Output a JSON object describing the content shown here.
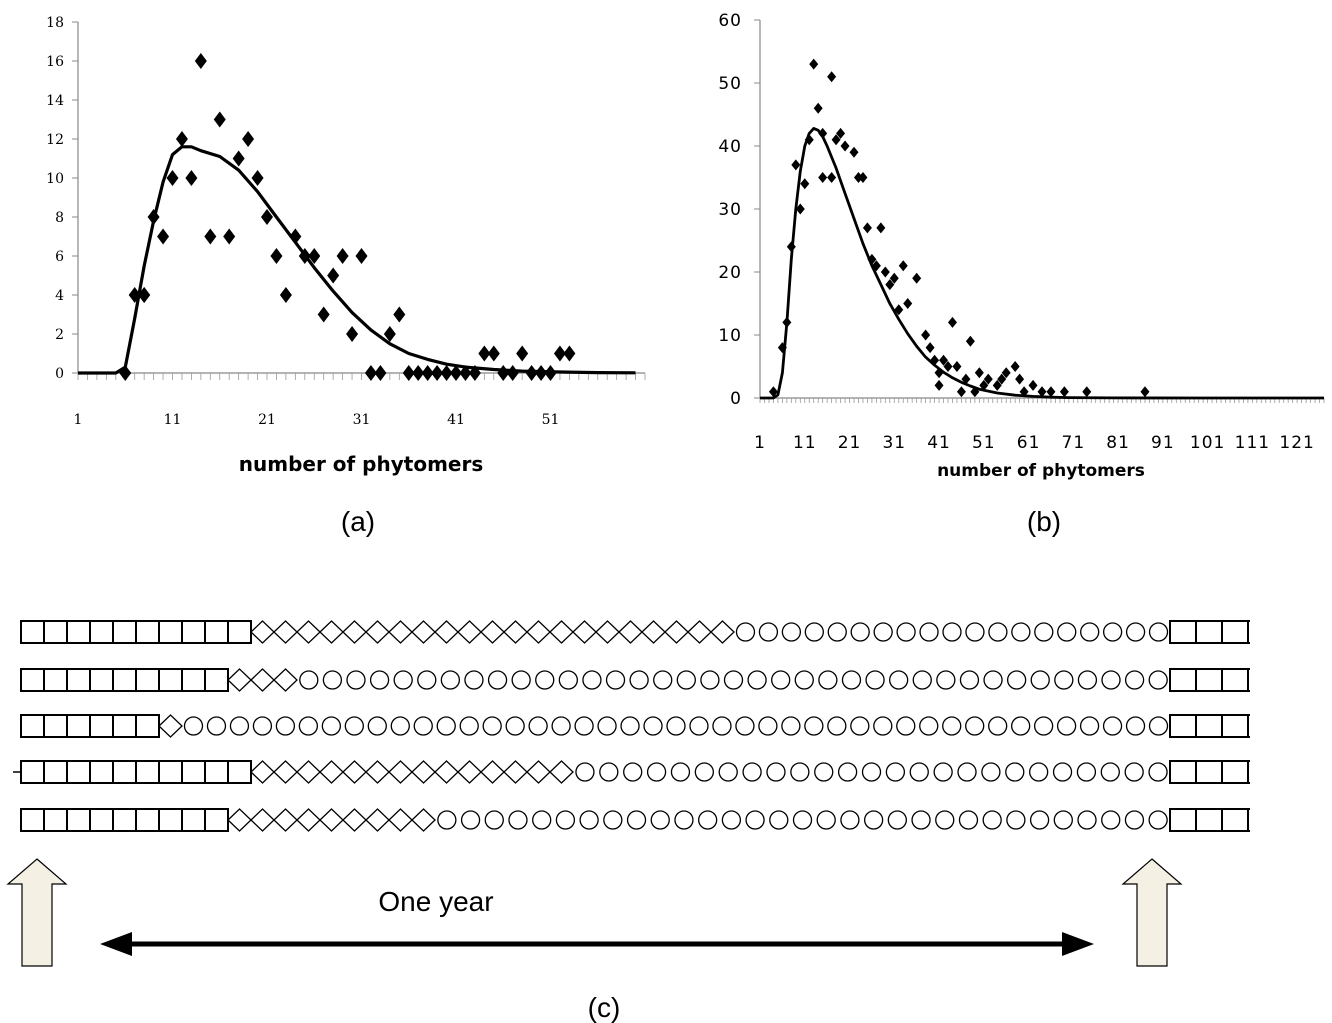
{
  "chart_data": [
    {
      "type": "scatter",
      "panel": "(a)",
      "xlabel": "number of phytomers",
      "ylabel": "",
      "xlim": [
        1,
        61
      ],
      "ylim": [
        0,
        18
      ],
      "xticks": [
        1,
        11,
        21,
        31,
        41,
        51
      ],
      "yticks": [
        0,
        2,
        4,
        6,
        8,
        10,
        12,
        14,
        16,
        18
      ],
      "grid": false,
      "points": [
        [
          6,
          0
        ],
        [
          7,
          4
        ],
        [
          8,
          4
        ],
        [
          8,
          4
        ],
        [
          9,
          8
        ],
        [
          10,
          7
        ],
        [
          11,
          10
        ],
        [
          12,
          12
        ],
        [
          13,
          10
        ],
        [
          14,
          16
        ],
        [
          15,
          7
        ],
        [
          16,
          13
        ],
        [
          17,
          7
        ],
        [
          18,
          11
        ],
        [
          19,
          12
        ],
        [
          20,
          10
        ],
        [
          21,
          8
        ],
        [
          22,
          6
        ],
        [
          23,
          4
        ],
        [
          24,
          7
        ],
        [
          25,
          6
        ],
        [
          26,
          6
        ],
        [
          27,
          3
        ],
        [
          28,
          5
        ],
        [
          29,
          6
        ],
        [
          30,
          2
        ],
        [
          31,
          6
        ],
        [
          32,
          0
        ],
        [
          33,
          0
        ],
        [
          34,
          2
        ],
        [
          35,
          3
        ],
        [
          36,
          0
        ],
        [
          37,
          0
        ],
        [
          38,
          0
        ],
        [
          39,
          0
        ],
        [
          40,
          0
        ],
        [
          41,
          0
        ],
        [
          42,
          0
        ],
        [
          43,
          0
        ],
        [
          44,
          1
        ],
        [
          45,
          1
        ],
        [
          46,
          0
        ],
        [
          47,
          0
        ],
        [
          48,
          1
        ],
        [
          49,
          0
        ],
        [
          50,
          0
        ],
        [
          51,
          0
        ],
        [
          52,
          1
        ],
        [
          53,
          1
        ]
      ],
      "fit": [
        [
          1,
          0
        ],
        [
          5,
          0
        ],
        [
          6,
          0.3
        ],
        [
          7,
          2.8
        ],
        [
          8,
          5.5
        ],
        [
          9,
          7.8
        ],
        [
          10,
          9.8
        ],
        [
          11,
          11.2
        ],
        [
          12,
          11.6
        ],
        [
          13,
          11.6
        ],
        [
          14,
          11.4
        ],
        [
          16,
          11.1
        ],
        [
          18,
          10.4
        ],
        [
          20,
          9.3
        ],
        [
          22,
          8.0
        ],
        [
          24,
          6.7
        ],
        [
          26,
          5.4
        ],
        [
          28,
          4.2
        ],
        [
          30,
          3.1
        ],
        [
          32,
          2.2
        ],
        [
          34,
          1.5
        ],
        [
          36,
          1.0
        ],
        [
          38,
          0.7
        ],
        [
          40,
          0.45
        ],
        [
          42,
          0.3
        ],
        [
          45,
          0.18
        ],
        [
          48,
          0.1
        ],
        [
          52,
          0.05
        ],
        [
          56,
          0.02
        ],
        [
          60,
          0.01
        ]
      ]
    },
    {
      "type": "scatter",
      "panel": "(b)",
      "xlabel": "number of phytomers",
      "ylabel": "",
      "xlim": [
        1,
        127
      ],
      "ylim": [
        0,
        60
      ],
      "xticks": [
        1,
        11,
        21,
        31,
        41,
        51,
        61,
        71,
        81,
        91,
        101,
        111,
        121
      ],
      "yticks": [
        0,
        10,
        20,
        30,
        40,
        50,
        60
      ],
      "grid": false,
      "points": [
        [
          4,
          1
        ],
        [
          6,
          8
        ],
        [
          7,
          12
        ],
        [
          8,
          24
        ],
        [
          9,
          37
        ],
        [
          10,
          30
        ],
        [
          11,
          34
        ],
        [
          12,
          41
        ],
        [
          13,
          53
        ],
        [
          14,
          46
        ],
        [
          15,
          42
        ],
        [
          15,
          35
        ],
        [
          17,
          51
        ],
        [
          17,
          35
        ],
        [
          18,
          41
        ],
        [
          19,
          42
        ],
        [
          20,
          40
        ],
        [
          22,
          39
        ],
        [
          23,
          35
        ],
        [
          24,
          35
        ],
        [
          25,
          27
        ],
        [
          26,
          22
        ],
        [
          27,
          21
        ],
        [
          28,
          27
        ],
        [
          29,
          20
        ],
        [
          30,
          18
        ],
        [
          31,
          19
        ],
        [
          32,
          14
        ],
        [
          33,
          21
        ],
        [
          34,
          15
        ],
        [
          36,
          19
        ],
        [
          38,
          10
        ],
        [
          39,
          8
        ],
        [
          40,
          6
        ],
        [
          41,
          4
        ],
        [
          41,
          2
        ],
        [
          42,
          6
        ],
        [
          43,
          5
        ],
        [
          44,
          12
        ],
        [
          45,
          5
        ],
        [
          46,
          1
        ],
        [
          47,
          3
        ],
        [
          48,
          9
        ],
        [
          49,
          1
        ],
        [
          50,
          4
        ],
        [
          51,
          2
        ],
        [
          52,
          3
        ],
        [
          54,
          2
        ],
        [
          55,
          3
        ],
        [
          56,
          4
        ],
        [
          58,
          5
        ],
        [
          59,
          3
        ],
        [
          60,
          1
        ],
        [
          62,
          2
        ],
        [
          64,
          1
        ],
        [
          66,
          1
        ],
        [
          69,
          1
        ],
        [
          74,
          1
        ],
        [
          87,
          1
        ]
      ],
      "fit": [
        [
          1,
          0
        ],
        [
          4,
          0
        ],
        [
          5,
          0.5
        ],
        [
          6,
          4
        ],
        [
          7,
          12
        ],
        [
          8,
          22
        ],
        [
          9,
          30
        ],
        [
          10,
          36
        ],
        [
          11,
          40
        ],
        [
          12,
          42
        ],
        [
          13,
          42.8
        ],
        [
          14,
          42.5
        ],
        [
          15,
          41.5
        ],
        [
          16,
          40
        ],
        [
          18,
          36.5
        ],
        [
          20,
          32.5
        ],
        [
          22,
          28.5
        ],
        [
          24,
          24.5
        ],
        [
          26,
          21
        ],
        [
          28,
          18
        ],
        [
          30,
          15
        ],
        [
          32,
          12.5
        ],
        [
          34,
          10.2
        ],
        [
          36,
          8.2
        ],
        [
          38,
          6.5
        ],
        [
          40,
          5.2
        ],
        [
          42,
          4.1
        ],
        [
          44,
          3.2
        ],
        [
          46,
          2.5
        ],
        [
          48,
          1.9
        ],
        [
          50,
          1.4
        ],
        [
          54,
          0.8
        ],
        [
          58,
          0.45
        ],
        [
          62,
          0.25
        ],
        [
          66,
          0.13
        ],
        [
          70,
          0.07
        ],
        [
          80,
          0.02
        ],
        [
          100,
          0
        ],
        [
          127,
          0
        ]
      ]
    },
    {
      "type": "diagram",
      "panel": "(c)",
      "rows": [
        {
          "squares_start": 10,
          "diamonds": 21,
          "circles": 19,
          "squares_end": 3
        },
        {
          "squares_start": 9,
          "diamonds": 3,
          "circles": 37,
          "squares_end": 3
        },
        {
          "squares_start": 6,
          "diamonds": 1,
          "circles": 43,
          "squares_end": 3
        },
        {
          "squares_start": 10,
          "diamonds": 14,
          "circles": 25,
          "squares_end": 3
        },
        {
          "squares_start": 9,
          "diamonds": 9,
          "circles": 31,
          "squares_end": 3
        }
      ],
      "arrow_label": "One year"
    }
  ],
  "captions": {
    "a": "(a)",
    "b": "(b)",
    "c": "(c)"
  }
}
